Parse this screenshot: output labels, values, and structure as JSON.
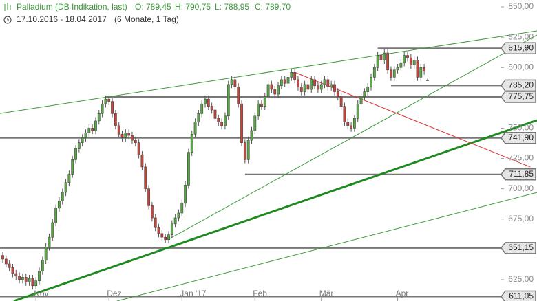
{
  "chart_data": {
    "type": "candlestick",
    "title": "Palladium (DB Indikation, last)",
    "ohlc_labels": [
      "O: 789,45",
      "H: 790,75",
      "L: 788,95",
      "C: 789,70"
    ],
    "period": "17.10.2016 - 18.04.2017",
    "subtitle": "(6 Monate, 1 Tag)",
    "up_color": "#5aa845",
    "down_color": "#c8453c",
    "xlim": [
      -0.83,
      161
    ],
    "ylim": [
      607.4,
      855.7
    ],
    "yticks": [
      {
        "value": 625,
        "label": "625,00"
      },
      {
        "value": 650,
        "label": "650,00"
      },
      {
        "value": 675,
        "label": "675,00"
      },
      {
        "value": 700,
        "label": "700,00"
      },
      {
        "value": 725,
        "label": "725,00"
      },
      {
        "value": 750,
        "label": "750,00"
      },
      {
        "value": 775,
        "label": "775,00"
      },
      {
        "value": 800,
        "label": "800,00"
      },
      {
        "value": 825,
        "label": "825,00"
      },
      {
        "value": 850,
        "label": "850,00"
      }
    ],
    "xticks": [
      {
        "value": 10,
        "label": "Nov"
      },
      {
        "value": 32,
        "label": "Dez"
      },
      {
        "value": 54,
        "label": "Jan '17"
      },
      {
        "value": 76,
        "label": "Feb"
      },
      {
        "value": 96,
        "label": "Mär"
      },
      {
        "value": 119,
        "label": "Apr"
      }
    ],
    "open": [
      645,
      642,
      638,
      635,
      630,
      628,
      625,
      627,
      623,
      626,
      620,
      624,
      632,
      641,
      652,
      660,
      672,
      684,
      690,
      697,
      705,
      712,
      724,
      733,
      738,
      742,
      746,
      750,
      748,
      756,
      762,
      770,
      774,
      772,
      762,
      752,
      745,
      742,
      746,
      744,
      740,
      738,
      728,
      718,
      700,
      686,
      676,
      668,
      663,
      660,
      658,
      662,
      671,
      676,
      680,
      688,
      703,
      730,
      745,
      755,
      762,
      770,
      774,
      768,
      765,
      758,
      755,
      752,
      760,
      786,
      790,
      784,
      770,
      738,
      724,
      740,
      748,
      760,
      770,
      768,
      776,
      786,
      782,
      778,
      785,
      790,
      787,
      792,
      796,
      790,
      784,
      780,
      786,
      782,
      790,
      785,
      782,
      786,
      790,
      784,
      786,
      780,
      776,
      768,
      755,
      752,
      750,
      758,
      770,
      776,
      780,
      784,
      792,
      800,
      810,
      806,
      812,
      798,
      792,
      798,
      800,
      804,
      810,
      808,
      802,
      806,
      792,
      800,
      789.45
    ],
    "high": [
      648,
      645,
      641,
      638,
      633,
      631,
      630,
      630,
      629,
      629,
      627,
      635,
      644,
      655,
      663,
      675,
      687,
      693,
      700,
      708,
      715,
      727,
      736,
      741,
      745,
      749,
      753,
      753,
      759,
      765,
      773,
      777,
      777,
      775,
      765,
      755,
      748,
      749,
      749,
      747,
      743,
      741,
      731,
      721,
      703,
      689,
      679,
      671,
      666,
      663,
      665,
      674,
      679,
      683,
      691,
      706,
      733,
      748,
      758,
      765,
      773,
      777,
      777,
      771,
      768,
      761,
      758,
      763,
      789,
      793,
      793,
      787,
      773,
      741,
      743,
      751,
      763,
      773,
      773,
      779,
      789,
      789,
      785,
      788,
      793,
      793,
      795,
      799,
      799,
      793,
      787,
      789,
      789,
      793,
      793,
      788,
      789,
      793,
      793,
      789,
      789,
      783,
      779,
      771,
      758,
      755,
      761,
      773,
      779,
      783,
      787,
      795,
      803,
      813,
      813,
      815,
      815,
      801,
      801,
      803,
      807,
      813,
      813,
      811,
      809,
      809,
      803,
      803,
      790.75
    ],
    "low": [
      639,
      635,
      632,
      627,
      625,
      622,
      622,
      620,
      620,
      617,
      617,
      621,
      629,
      638,
      649,
      657,
      669,
      681,
      687,
      694,
      702,
      709,
      721,
      730,
      735,
      739,
      743,
      745,
      745,
      753,
      759,
      767,
      769,
      759,
      749,
      742,
      739,
      739,
      741,
      737,
      735,
      725,
      715,
      697,
      683,
      673,
      665,
      660,
      657,
      655,
      655,
      659,
      668,
      673,
      677,
      685,
      700,
      727,
      742,
      752,
      759,
      767,
      765,
      762,
      755,
      752,
      749,
      749,
      757,
      783,
      781,
      767,
      735,
      721,
      721,
      737,
      745,
      757,
      765,
      765,
      773,
      779,
      775,
      775,
      782,
      784,
      784,
      789,
      787,
      781,
      777,
      777,
      779,
      779,
      782,
      779,
      779,
      783,
      781,
      781,
      777,
      773,
      765,
      752,
      749,
      747,
      747,
      755,
      767,
      773,
      777,
      781,
      789,
      797,
      803,
      803,
      795,
      789,
      789,
      795,
      797,
      801,
      805,
      799,
      799,
      789,
      789,
      794,
      788.95
    ],
    "close": [
      642,
      638,
      635,
      630,
      628,
      625,
      627,
      623,
      626,
      620,
      624,
      632,
      641,
      652,
      660,
      672,
      684,
      690,
      697,
      705,
      712,
      724,
      733,
      738,
      742,
      746,
      750,
      748,
      756,
      762,
      770,
      774,
      772,
      762,
      752,
      745,
      742,
      746,
      744,
      740,
      738,
      728,
      718,
      700,
      686,
      676,
      668,
      663,
      660,
      658,
      662,
      671,
      676,
      680,
      688,
      703,
      730,
      745,
      755,
      762,
      770,
      774,
      768,
      765,
      758,
      755,
      752,
      760,
      786,
      790,
      784,
      770,
      738,
      724,
      740,
      748,
      760,
      770,
      768,
      776,
      786,
      782,
      778,
      785,
      790,
      787,
      792,
      796,
      790,
      784,
      780,
      786,
      782,
      790,
      785,
      782,
      786,
      790,
      784,
      786,
      780,
      776,
      768,
      755,
      752,
      750,
      758,
      770,
      776,
      780,
      784,
      792,
      800,
      810,
      806,
      812,
      798,
      792,
      798,
      800,
      804,
      810,
      808,
      802,
      806,
      792,
      800,
      797,
      789.7
    ],
    "levels": [
      {
        "value": 815.9,
        "label": "815,90",
        "start": 113
      },
      {
        "value": 785.2,
        "label": "785,20",
        "start": 117
      },
      {
        "value": 775.75,
        "label": "775,75",
        "start": 31
      },
      {
        "value": 741.9,
        "label": "741,90"
      },
      {
        "value": 711.85,
        "label": "711,85",
        "start": 73
      },
      {
        "value": 651.15,
        "label": "651,15"
      },
      {
        "value": 611.05,
        "label": "611,05"
      }
    ],
    "level_color": "#777777",
    "trendlines": [
      {
        "from": [
          -0.83,
          762.1
        ],
        "to": [
          161,
          830.2
        ],
        "color": "#3a9a3a",
        "width": 1
      },
      {
        "from": [
          50,
          658.4
        ],
        "to": [
          161,
          826.8
        ],
        "color": "#3a9a3a",
        "width": 1
      },
      {
        "from": [
          3.3,
          607.4
        ],
        "to": [
          161,
          756.5
        ],
        "color": "#1e8a1e",
        "width": 3
      },
      {
        "from": [
          34.4,
          607.4
        ],
        "to": [
          161,
          696.9
        ],
        "color": "#3a9a3a",
        "width": 1
      },
      {
        "from": [
          88.4,
          795.6
        ],
        "to": [
          159,
          717.9
        ],
        "color": "#e03030",
        "width": 1
      }
    ]
  }
}
